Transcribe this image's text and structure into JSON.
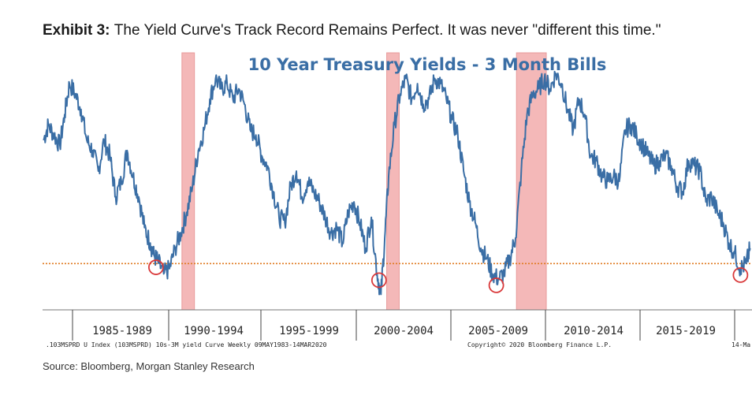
{
  "exhibit": {
    "label": "Exhibit 3:",
    "title": "The Yield Curve's Track Record Remains Perfect. It was never \"different this time.\""
  },
  "source": "Source: Bloomberg, Morgan Stanley Research",
  "colors": {
    "line": "#3a6ea5",
    "recession": "#f4b8b8",
    "recession_edge": "#e89a9a",
    "zero_line": "#e07b22",
    "circle": "#d9393a",
    "title": "#3a6ea5",
    "marker": "#d9393a"
  },
  "chart_data": {
    "type": "line",
    "title": "10 Year Treasury Yields - 3 Month Bills",
    "x_ticks": [
      "1985-1989",
      "1990-1994",
      "1995-1999",
      "2000-2004",
      "2005-2009",
      "2010-2014",
      "2015-2019"
    ],
    "x_range": [
      1983.3,
      2020.2
    ],
    "y_range": [
      -0.9,
      4.1
    ],
    "zero_line": 0,
    "recessions": [
      {
        "start": 1990.55,
        "end": 1991.2
      },
      {
        "start": 2001.2,
        "end": 2001.85
      },
      {
        "start": 2007.95,
        "end": 2009.5
      }
    ],
    "inversion_circles": [
      1989.2,
      2000.8,
      2006.9,
      2019.6
    ],
    "footer_left": ".103MSPRD U Index (103MSPRD) 10s-3M yield Curve  Weekly 09MAY1983-14MAR2020",
    "footer_right": "Copyright© 2020 Bloomberg Finance L.P.",
    "footer_end": "14-Ma",
    "series": [
      {
        "x": [
          1983.35,
          1983.6,
          1983.9,
          1984.2,
          1984.45,
          1984.7,
          1985.0,
          1985.3,
          1985.6,
          1985.9,
          1986.2,
          1986.5,
          1986.8,
          1987.1,
          1987.4,
          1987.7,
          1988.0,
          1988.3,
          1988.6,
          1988.9,
          1989.1,
          1989.3,
          1989.6,
          1989.9,
          1990.2,
          1990.5,
          1990.8,
          1991.1,
          1991.4,
          1991.7,
          1992.0,
          1992.3,
          1992.6,
          1992.9,
          1993.2,
          1993.5,
          1993.8,
          1994.1,
          1994.4,
          1994.7,
          1995.0,
          1995.3,
          1995.6,
          1995.9,
          1996.2,
          1996.5,
          1996.8,
          1997.1,
          1997.4,
          1997.7,
          1998.0,
          1998.3,
          1998.6,
          1998.9,
          1999.2,
          1999.5,
          1999.8,
          2000.1,
          2000.4,
          2000.7,
          2000.9,
          2001.1,
          2001.3,
          2001.6,
          2001.9,
          2002.2,
          2002.5,
          2002.8,
          2003.1,
          2003.4,
          2003.7,
          2004.0,
          2004.3,
          2004.6,
          2004.9,
          2005.2,
          2005.5,
          2005.8,
          2006.1,
          2006.4,
          2006.7,
          2007.0,
          2007.3,
          2007.6,
          2007.9,
          2008.2,
          2008.5,
          2008.8,
          2009.1,
          2009.4,
          2009.7,
          2010.0,
          2010.3,
          2010.6,
          2010.9,
          2011.2,
          2011.5,
          2011.8,
          2012.1,
          2012.4,
          2012.7,
          2013.0,
          2013.3,
          2013.6,
          2013.9,
          2014.2,
          2014.5,
          2014.8,
          2015.1,
          2015.4,
          2015.7,
          2016.0,
          2016.3,
          2016.6,
          2016.9,
          2017.2,
          2017.5,
          2017.8,
          2018.1,
          2018.4,
          2018.7,
          2019.0,
          2019.3,
          2019.6,
          2019.9,
          2020.1
        ],
        "y": [
          2.4,
          2.7,
          2.5,
          2.3,
          2.9,
          3.5,
          3.3,
          3.0,
          2.4,
          2.2,
          1.8,
          2.4,
          2.1,
          1.3,
          1.6,
          2.2,
          1.7,
          1.3,
          0.7,
          0.4,
          0.15,
          0.05,
          -0.2,
          -0.1,
          0.3,
          0.6,
          1.0,
          1.5,
          2.2,
          2.6,
          3.2,
          3.6,
          3.4,
          3.5,
          3.2,
          3.4,
          3.1,
          2.6,
          2.5,
          2.1,
          1.9,
          1.4,
          0.9,
          0.8,
          1.5,
          1.8,
          1.3,
          1.6,
          1.4,
          1.2,
          0.9,
          0.6,
          0.7,
          0.4,
          1.0,
          1.2,
          0.8,
          0.3,
          0.9,
          -0.2,
          -0.6,
          0.5,
          1.7,
          2.7,
          3.3,
          3.6,
          3.2,
          3.5,
          3.1,
          3.2,
          3.6,
          3.5,
          3.2,
          2.8,
          2.5,
          1.8,
          1.2,
          0.8,
          0.3,
          0.1,
          -0.2,
          -0.3,
          -0.2,
          0.1,
          0.5,
          1.8,
          2.9,
          3.3,
          3.4,
          3.6,
          3.4,
          3.7,
          3.5,
          3.0,
          2.6,
          3.2,
          2.9,
          2.1,
          2.0,
          1.7,
          1.6,
          1.7,
          1.6,
          2.6,
          2.7,
          2.5,
          2.3,
          2.1,
          1.9,
          2.0,
          2.1,
          1.9,
          1.5,
          1.4,
          2.0,
          1.9,
          1.8,
          1.2,
          1.3,
          1.0,
          0.8,
          0.4,
          0.2,
          -0.1,
          0.0,
          0.3
        ]
      }
    ]
  }
}
